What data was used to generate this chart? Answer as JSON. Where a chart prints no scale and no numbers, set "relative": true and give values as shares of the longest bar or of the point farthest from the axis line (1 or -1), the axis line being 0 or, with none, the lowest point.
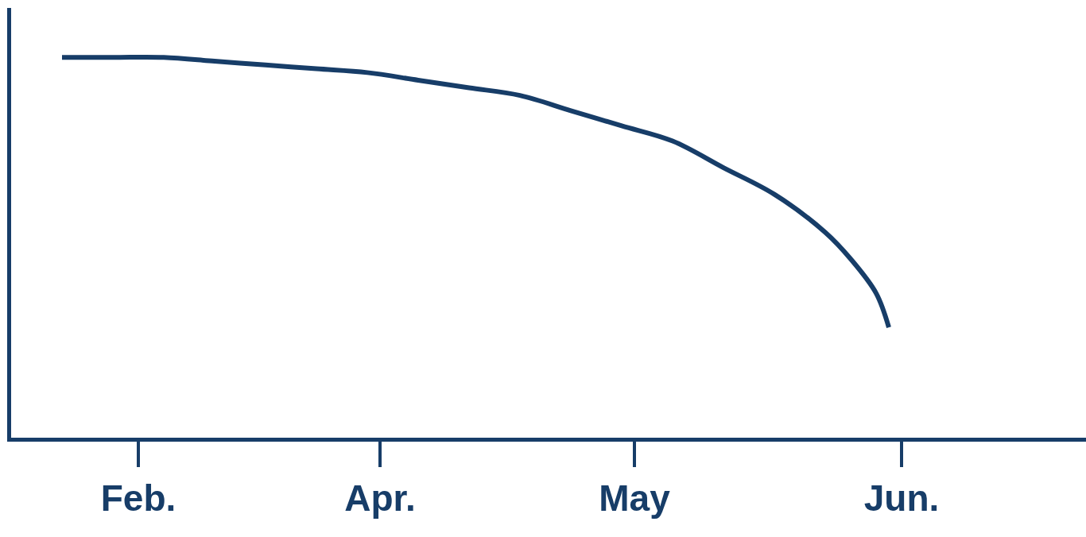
{
  "chart_data": {
    "type": "line",
    "relative": true,
    "color": "#173d68",
    "grid": false,
    "marker": "none",
    "line_style": "solid",
    "categories": [
      null,
      null,
      null,
      null,
      null,
      null,
      "Feb.",
      null,
      null,
      null,
      null,
      null,
      null,
      null,
      null,
      null,
      null,
      null,
      null,
      null,
      null,
      null,
      null,
      null,
      null,
      "Apr.",
      null,
      null,
      null,
      null,
      null,
      null,
      null,
      null,
      null,
      null,
      null,
      null,
      null,
      null,
      null,
      null,
      null,
      null,
      null,
      "May",
      null,
      null,
      null,
      null,
      null,
      null,
      null,
      null,
      null,
      null,
      null,
      null,
      null,
      null,
      null,
      null,
      null,
      null,
      null,
      null,
      "Jun."
    ],
    "values": [
      1.0,
      null,
      null,
      null,
      1.0,
      null,
      null,
      null,
      1.0,
      null,
      null,
      null,
      0.99,
      null,
      null,
      null,
      0.98,
      null,
      null,
      null,
      0.97,
      null,
      null,
      null,
      0.96,
      null,
      null,
      null,
      0.94,
      null,
      null,
      null,
      0.92,
      null,
      null,
      null,
      0.9,
      null,
      null,
      null,
      0.86,
      null,
      null,
      null,
      0.82,
      null,
      null,
      null,
      0.78,
      null,
      null,
      null,
      0.71,
      null,
      null,
      null,
      0.64,
      null,
      null,
      null,
      0.54,
      null,
      0.47,
      null,
      0.38,
      0.29,
      null
    ]
  }
}
